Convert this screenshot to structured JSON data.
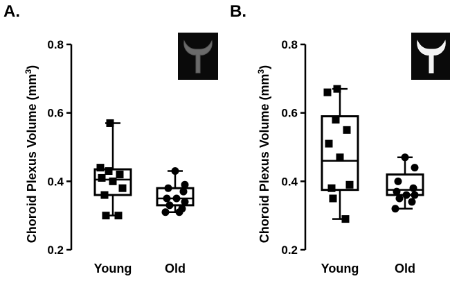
{
  "chart_data": [
    {
      "panel_label": "A.",
      "type": "box",
      "ylabel": "Choroid Plexus Volume (mm",
      "ylabel_superscript": "3",
      "ylabel_close": ")",
      "ylim": [
        0.2,
        0.8
      ],
      "yticks": [
        "0.2",
        "0.4",
        "0.6",
        "0.8"
      ],
      "ytick_values": [
        0.2,
        0.4,
        0.6,
        0.8
      ],
      "categories": [
        "Young",
        "Old"
      ],
      "groups": [
        {
          "name": "Young",
          "marker": "square",
          "min": 0.3,
          "q1": 0.36,
          "median": 0.405,
          "q3": 0.435,
          "max": 0.57,
          "points": [
            0.57,
            0.44,
            0.43,
            0.42,
            0.41,
            0.4,
            0.38,
            0.36,
            0.3,
            0.3
          ]
        },
        {
          "name": "Old",
          "marker": "circle",
          "min": 0.31,
          "q1": 0.33,
          "median": 0.35,
          "q3": 0.38,
          "max": 0.43,
          "points": [
            0.43,
            0.39,
            0.38,
            0.37,
            0.35,
            0.35,
            0.34,
            0.33,
            0.32,
            0.31,
            0.31
          ]
        }
      ],
      "inset": {
        "icon": "choroid-plexus-mri-inset",
        "brightness": "dim"
      }
    },
    {
      "panel_label": "B.",
      "type": "box",
      "ylabel": "Choroid Plexus Volume (mm",
      "ylabel_superscript": "3",
      "ylabel_close": ")",
      "ylim": [
        0.2,
        0.8
      ],
      "yticks": [
        "0.2",
        "0.4",
        "0.6",
        "0.8"
      ],
      "ytick_values": [
        0.2,
        0.4,
        0.6,
        0.8
      ],
      "categories": [
        "Young",
        "Old"
      ],
      "groups": [
        {
          "name": "Young",
          "marker": "square",
          "min": 0.29,
          "q1": 0.375,
          "median": 0.46,
          "q3": 0.59,
          "max": 0.67,
          "points": [
            0.67,
            0.66,
            0.58,
            0.55,
            0.51,
            0.47,
            0.39,
            0.38,
            0.35,
            0.29
          ]
        },
        {
          "name": "Old",
          "marker": "circle",
          "min": 0.32,
          "q1": 0.36,
          "median": 0.375,
          "q3": 0.42,
          "max": 0.47,
          "points": [
            0.47,
            0.44,
            0.4,
            0.38,
            0.37,
            0.36,
            0.36,
            0.35,
            0.34,
            0.32
          ]
        }
      ],
      "inset": {
        "icon": "choroid-plexus-mri-inset",
        "brightness": "bright"
      }
    }
  ]
}
